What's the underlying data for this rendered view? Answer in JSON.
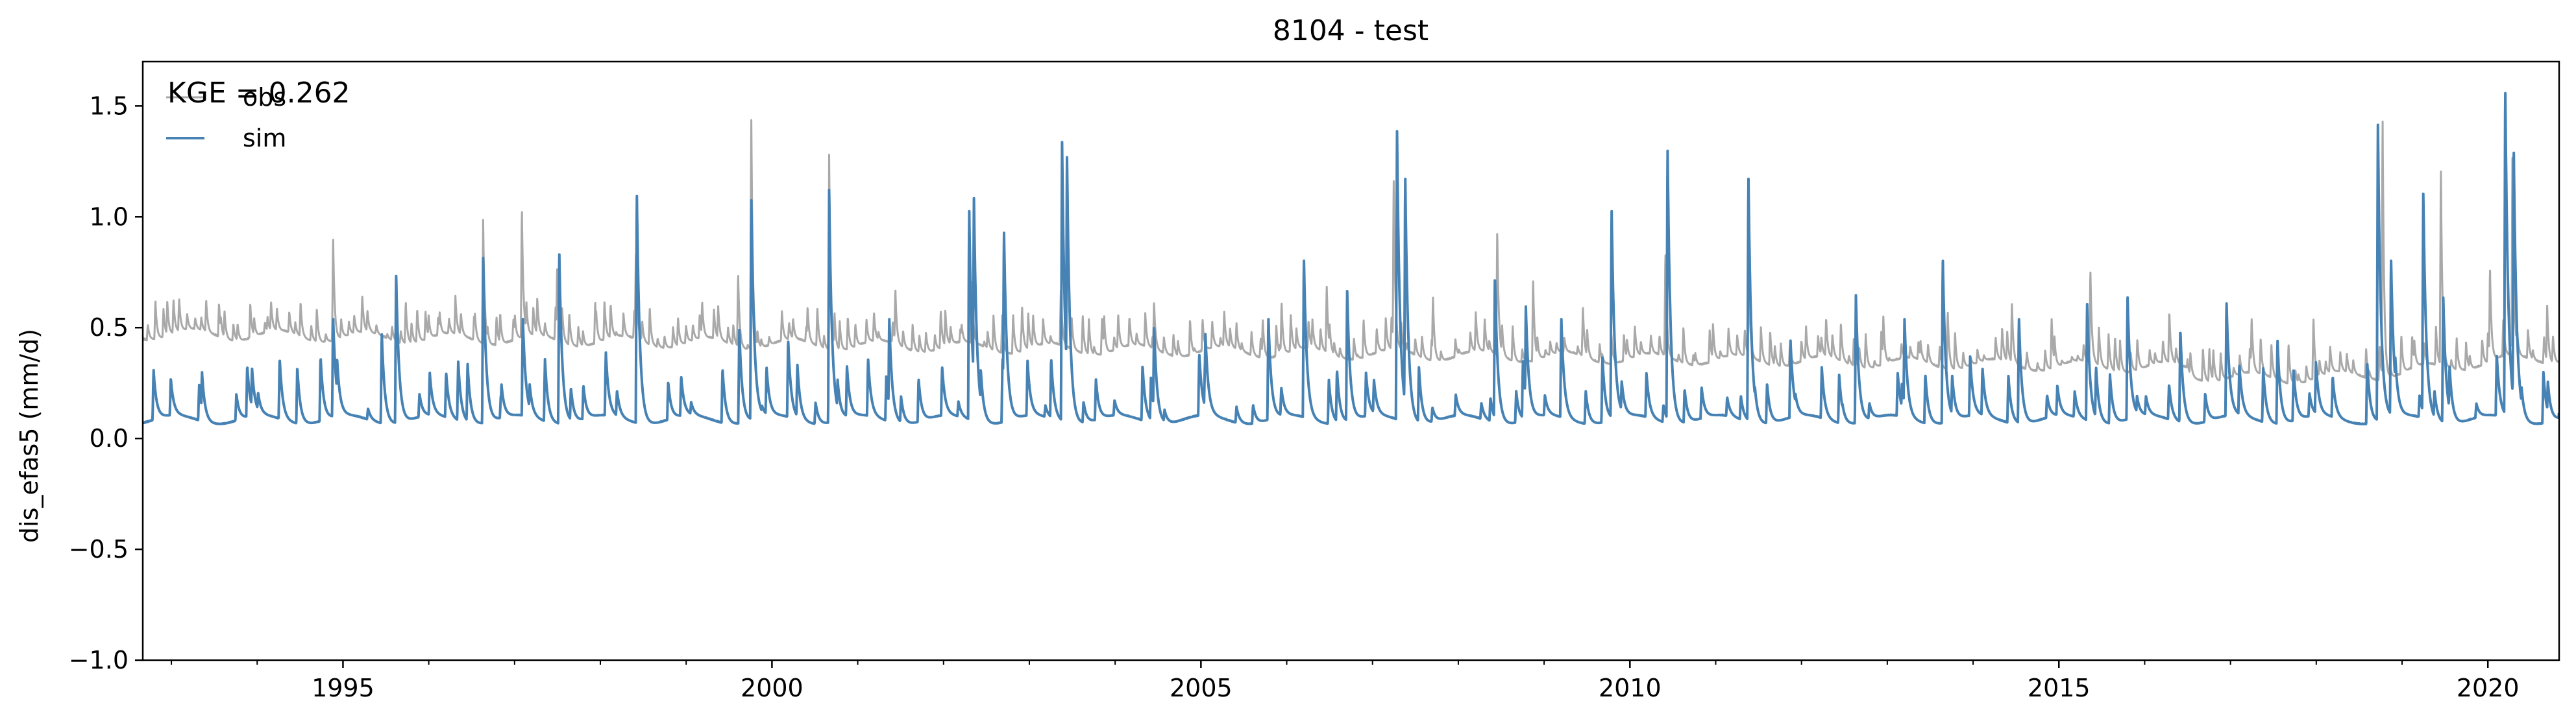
{
  "chart_data": {
    "type": "line",
    "title": "8104 - test",
    "xlabel": "",
    "ylabel": "dis_efas5 (mm/d)",
    "xlim": [
      "1992-09-01",
      "2020-10-31"
    ],
    "ylim": [
      -1.0,
      1.7
    ],
    "x_ticks": [
      "1995",
      "2000",
      "2005",
      "2010",
      "2015",
      "2020"
    ],
    "y_ticks": [
      "−1.0",
      "−0.5",
      "0.0",
      "0.5",
      "1.0",
      "1.5"
    ],
    "grid": false,
    "legend": {
      "placement": "top-left",
      "entries": [
        "obs",
        "sim"
      ]
    },
    "annotation": "KGE = 0.262",
    "series": [
      {
        "name": "obs",
        "color": "#a9a9a9",
        "peaks": [
          [
            "1993-01-10",
            0.63
          ],
          [
            "1993-08-15",
            0.58
          ],
          [
            "1994-03-01",
            0.62
          ],
          [
            "1994-11-20",
            0.92
          ],
          [
            "1995-04-15",
            0.58
          ],
          [
            "1995-09-25",
            0.62
          ],
          [
            "1996-02-10",
            0.55
          ],
          [
            "1996-08-20",
            0.99
          ],
          [
            "1997-02-01",
            1.05
          ],
          [
            "1997-07-01",
            0.78
          ],
          [
            "1997-12-10",
            0.62
          ],
          [
            "1998-06-01",
            0.85
          ],
          [
            "1999-03-10",
            0.62
          ],
          [
            "1999-08-10",
            0.75
          ],
          [
            "1999-10-05",
            1.49
          ],
          [
            "2000-09-01",
            1.28
          ],
          [
            "2001-06-10",
            0.68
          ],
          [
            "2001-12-20",
            0.58
          ],
          [
            "2002-05-01",
            0.72
          ],
          [
            "2002-12-01",
            0.6
          ],
          [
            "2003-05-15",
            0.68
          ],
          [
            "2003-11-15",
            0.56
          ],
          [
            "2004-06-15",
            0.62
          ],
          [
            "2005-04-10",
            0.58
          ],
          [
            "2005-12-10",
            0.62
          ],
          [
            "2006-06-20",
            0.7
          ],
          [
            "2007-04-01",
            1.2
          ],
          [
            "2007-09-15",
            0.65
          ],
          [
            "2008-06-15",
            0.95
          ],
          [
            "2008-11-15",
            0.72
          ],
          [
            "2009-06-15",
            0.6
          ],
          [
            "2010-06-01",
            0.85
          ],
          [
            "2011-05-20",
            0.85
          ],
          [
            "2012-04-15",
            0.55
          ],
          [
            "2012-12-15",
            0.56
          ],
          [
            "2013-09-15",
            0.58
          ],
          [
            "2014-06-15",
            0.62
          ],
          [
            "2014-12-01",
            0.55
          ],
          [
            "2015-05-15",
            0.77
          ],
          [
            "2016-04-15",
            0.58
          ],
          [
            "2017-04-01",
            0.55
          ],
          [
            "2017-12-20",
            0.55
          ],
          [
            "2018-10-10",
            1.49
          ],
          [
            "2019-06-15",
            1.25
          ],
          [
            "2020-01-10",
            0.78
          ],
          [
            "2020-04-15",
            1.35
          ],
          [
            "2020-09-10",
            0.6
          ]
        ]
      },
      {
        "name": "sim",
        "color": "#4682b4",
        "peaks": [
          [
            "1993-01-10",
            0.15
          ],
          [
            "1993-12-10",
            0.32
          ],
          [
            "1994-11-20",
            0.55
          ],
          [
            "1995-06-15",
            0.48
          ],
          [
            "1995-08-15",
            0.75
          ],
          [
            "1996-03-15",
            0.3
          ],
          [
            "1996-08-20",
            0.82
          ],
          [
            "1997-02-05",
            0.55
          ],
          [
            "1997-07-10",
            0.85
          ],
          [
            "1998-06-05",
            1.12
          ],
          [
            "1999-08-15",
            0.5
          ],
          [
            "1999-10-05",
            1.1
          ],
          [
            "2000-03-10",
            0.45
          ],
          [
            "2000-09-01",
            1.12
          ],
          [
            "2001-05-15",
            0.55
          ],
          [
            "2002-04-20",
            1.05
          ],
          [
            "2002-05-10",
            1.11
          ],
          [
            "2002-09-15",
            0.95
          ],
          [
            "2003-05-20",
            1.37
          ],
          [
            "2003-06-10",
            1.3
          ],
          [
            "2004-06-15",
            0.52
          ],
          [
            "2005-01-20",
            0.48
          ],
          [
            "2005-10-15",
            0.55
          ],
          [
            "2006-03-15",
            0.82
          ],
          [
            "2006-09-15",
            0.68
          ],
          [
            "2007-04-15",
            1.42
          ],
          [
            "2007-05-20",
            1.2
          ],
          [
            "2008-06-05",
            0.75
          ],
          [
            "2008-10-15",
            0.6
          ],
          [
            "2009-03-15",
            0.55
          ],
          [
            "2009-10-15",
            1.05
          ],
          [
            "2010-06-10",
            1.33
          ],
          [
            "2011-05-20",
            1.2
          ],
          [
            "2011-11-15",
            0.45
          ],
          [
            "2012-08-20",
            0.65
          ],
          [
            "2013-03-15",
            0.55
          ],
          [
            "2013-08-25",
            0.82
          ],
          [
            "2014-07-15",
            0.55
          ],
          [
            "2015-05-01",
            0.62
          ],
          [
            "2015-10-20",
            0.65
          ],
          [
            "2016-06-01",
            0.5
          ],
          [
            "2016-12-15",
            0.62
          ],
          [
            "2017-07-20",
            0.45
          ],
          [
            "2018-09-20",
            1.45
          ],
          [
            "2018-11-15",
            0.82
          ],
          [
            "2019-04-01",
            1.13
          ],
          [
            "2019-06-25",
            0.65
          ],
          [
            "2020-03-15",
            1.62
          ],
          [
            "2020-04-20",
            1.35
          ],
          [
            "2020-08-25",
            0.3
          ]
        ]
      }
    ]
  }
}
